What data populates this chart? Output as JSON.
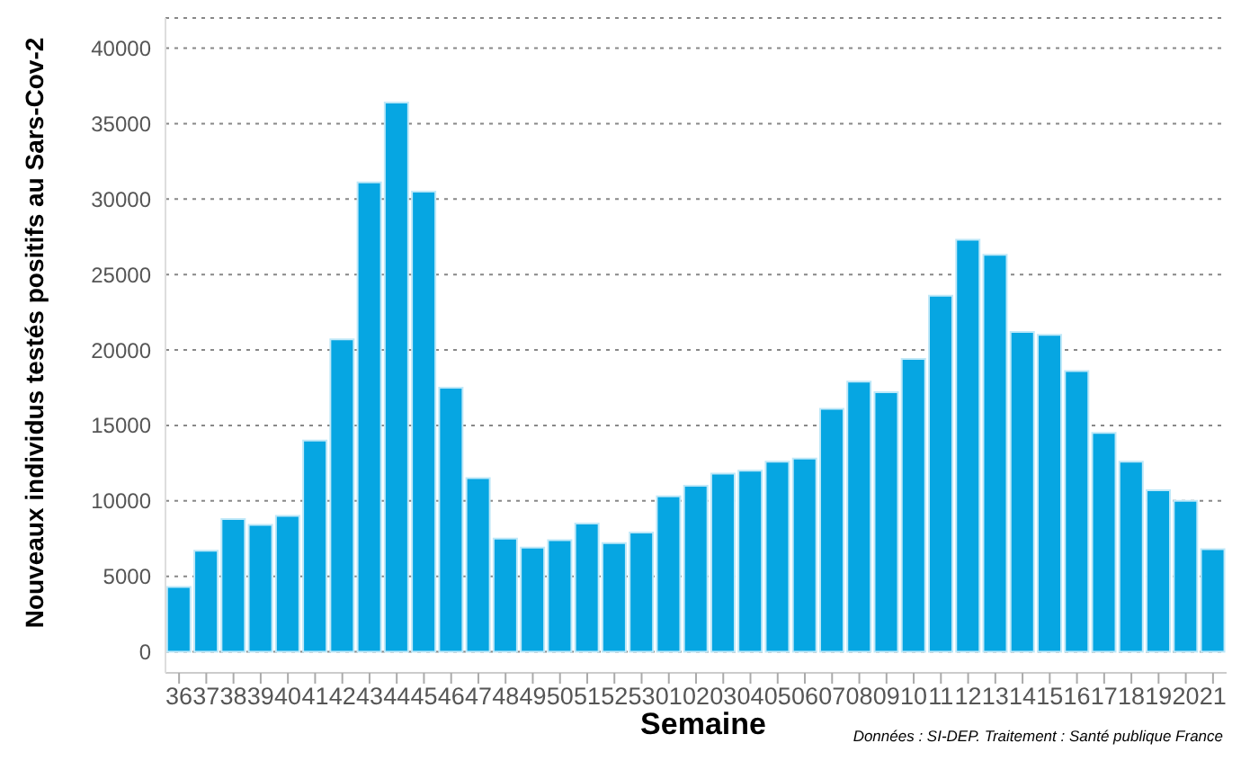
{
  "chart_data": {
    "type": "bar",
    "xlabel": "Semaine",
    "ylabel": "Nouveaux individus testés positifs au Sars-Cov-2",
    "categories": [
      "36",
      "37",
      "38",
      "39",
      "40",
      "41",
      "42",
      "43",
      "44",
      "45",
      "46",
      "47",
      "48",
      "49",
      "50",
      "51",
      "52",
      "53",
      "01",
      "02",
      "03",
      "04",
      "05",
      "06",
      "07",
      "08",
      "09",
      "10",
      "11",
      "12",
      "13",
      "14",
      "15",
      "16",
      "17",
      "18",
      "19",
      "20",
      "21"
    ],
    "values": [
      4300,
      6700,
      8800,
      8400,
      9000,
      14000,
      20700,
      31100,
      36400,
      30500,
      17500,
      11500,
      7500,
      6900,
      7400,
      8500,
      7200,
      7900,
      10300,
      11000,
      11800,
      12000,
      12600,
      12800,
      16100,
      17900,
      17200,
      19400,
      23600,
      27300,
      26300,
      21200,
      21000,
      18600,
      14500,
      12600,
      10700,
      10000,
      6800
    ],
    "color": "#06a6e2",
    "ylim": [
      -1400,
      42000
    ],
    "yticks": [
      0,
      5000,
      10000,
      15000,
      20000,
      25000,
      30000,
      35000,
      40000
    ],
    "grid": "y",
    "annotations": [
      "Données : SI-DEP. Traitement : Santé publique France"
    ]
  }
}
